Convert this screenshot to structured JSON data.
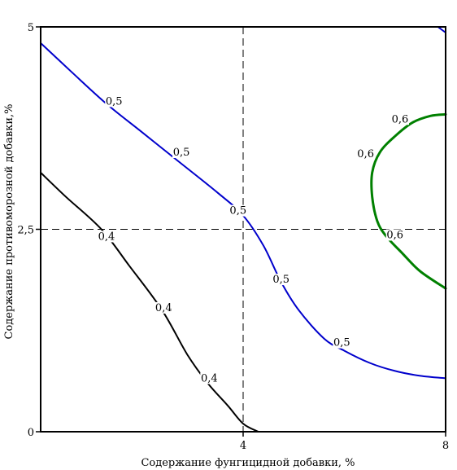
{
  "chart_data": {
    "type": "line",
    "title": "",
    "xlabel": "Содержание фунгицидной добавки, %",
    "ylabel": "Содержание противоморозной добавки,%",
    "xlim": [
      0,
      8
    ],
    "ylim": [
      0,
      5
    ],
    "x_ticks": [
      {
        "value": 4,
        "label": "4"
      },
      {
        "value": 8,
        "label": "8"
      }
    ],
    "y_ticks": [
      {
        "value": 0,
        "label": "0"
      },
      {
        "value": 2.5,
        "label": "2,5"
      },
      {
        "value": 5,
        "label": "5"
      }
    ],
    "grid": false,
    "reference_lines": [
      {
        "orientation": "vertical",
        "x": 4,
        "style": "dashed"
      },
      {
        "orientation": "horizontal",
        "y": 2.5,
        "style": "dashed"
      }
    ],
    "series": [
      {
        "level": "0,4",
        "color": "#000000",
        "points": [
          [
            0,
            3.2
          ],
          [
            0.5,
            2.9
          ],
          [
            1.2,
            2.5
          ],
          [
            1.75,
            2.05
          ],
          [
            2.4,
            1.5
          ],
          [
            2.9,
            0.95
          ],
          [
            3.3,
            0.6
          ],
          [
            3.7,
            0.32
          ],
          [
            4.0,
            0.1
          ],
          [
            4.3,
            0.0
          ]
        ],
        "labels": [
          {
            "text": "0,4",
            "at": [
              1.3,
              2.38
            ]
          },
          {
            "text": "0,4",
            "at": [
              2.43,
              1.5
            ]
          },
          {
            "text": "0,4",
            "at": [
              3.33,
              0.63
            ]
          }
        ]
      },
      {
        "level": "0,5",
        "color": "#0000cc",
        "points": [
          [
            0,
            4.8
          ],
          [
            0.6,
            4.45
          ],
          [
            1.3,
            4.05
          ],
          [
            2.0,
            3.7
          ],
          [
            2.7,
            3.35
          ],
          [
            3.5,
            2.95
          ],
          [
            4.0,
            2.67
          ],
          [
            4.4,
            2.3
          ],
          [
            4.75,
            1.85
          ],
          [
            5.1,
            1.5
          ],
          [
            5.6,
            1.15
          ],
          [
            6.0,
            1.0
          ],
          [
            6.5,
            0.85
          ],
          [
            7.0,
            0.75
          ],
          [
            7.5,
            0.69
          ],
          [
            8.0,
            0.66
          ]
        ],
        "labels": [
          {
            "text": "0,5",
            "at": [
              1.45,
              4.05
            ]
          },
          {
            "text": "0,5",
            "at": [
              2.78,
              3.42
            ]
          },
          {
            "text": "0,5",
            "at": [
              3.9,
              2.7
            ]
          },
          {
            "text": "0,5",
            "at": [
              4.75,
              1.85
            ]
          },
          {
            "text": "0,5",
            "at": [
              5.95,
              1.07
            ]
          }
        ]
      },
      {
        "level": "0,6",
        "color": "#008000",
        "points": [
          [
            8.0,
            3.92
          ],
          [
            7.7,
            3.9
          ],
          [
            7.35,
            3.82
          ],
          [
            7.0,
            3.65
          ],
          [
            6.7,
            3.45
          ],
          [
            6.55,
            3.2
          ],
          [
            6.55,
            2.9
          ],
          [
            6.65,
            2.6
          ],
          [
            6.82,
            2.42
          ],
          [
            7.15,
            2.2
          ],
          [
            7.5,
            1.98
          ],
          [
            8.0,
            1.77
          ]
        ],
        "labels": [
          {
            "text": "0,6",
            "at": [
              7.1,
              3.83
            ]
          },
          {
            "text": "0,6",
            "at": [
              6.42,
              3.4
            ]
          },
          {
            "text": "0,6",
            "at": [
              7.0,
              2.4
            ]
          }
        ]
      },
      {
        "level": "",
        "color": "#0000cc",
        "points": [
          [
            7.85,
            5.0
          ],
          [
            8.0,
            4.93
          ]
        ],
        "labels": []
      }
    ]
  }
}
